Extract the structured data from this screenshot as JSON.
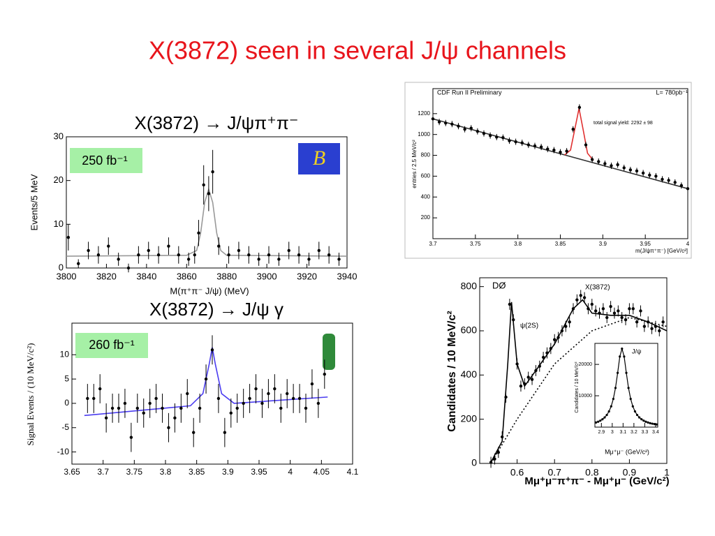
{
  "title": "X(3872) seen in several J/ψ channels",
  "chart_data": [
    {
      "type": "scatter",
      "title": "X(3872) → J/ψπ⁺π⁻",
      "x_label": "M(π⁺π⁻ J/ψ) (MeV)",
      "y_label": "Events/5 MeV",
      "annotations": [
        "250 fb⁻¹"
      ],
      "xlim": [
        3800,
        3940
      ],
      "xticks": [
        3800,
        3820,
        3840,
        3860,
        3880,
        3900,
        3920,
        3940
      ],
      "ylim": [
        0,
        30
      ],
      "yticks": [
        0,
        10,
        20,
        30
      ],
      "color": "#000000",
      "x": [
        3801,
        3806,
        3811,
        3816,
        3821,
        3826,
        3831,
        3836,
        3841,
        3846,
        3851,
        3856,
        3861,
        3864,
        3866,
        3868.5,
        3871,
        3873,
        3876,
        3881,
        3886,
        3891,
        3896,
        3901,
        3906,
        3911,
        3916,
        3921,
        3926,
        3931,
        3936
      ],
      "values": [
        7,
        1,
        4,
        3,
        5,
        2,
        0,
        3,
        4,
        3,
        5,
        3,
        2,
        3,
        8,
        19,
        17,
        22,
        5,
        3,
        4,
        3,
        2,
        3,
        2,
        4,
        3,
        2,
        4,
        3,
        2
      ],
      "errors": [
        3,
        1,
        2,
        2,
        2,
        1.5,
        1,
        2,
        2,
        2,
        2,
        2,
        1.5,
        2,
        3,
        4.5,
        4,
        5,
        2,
        2,
        2,
        2,
        1.5,
        2,
        1.5,
        2,
        2,
        1.5,
        2,
        2,
        1.5
      ],
      "curves": [
        {
          "x": [
            3800,
            3860,
            3865,
            3867,
            3869,
            3871,
            3873,
            3875,
            3877,
            3880,
            3940
          ],
          "values": [
            2.7,
            2.9,
            4,
            8,
            15,
            18,
            15,
            8,
            4,
            2.9,
            2.7
          ],
          "color": "#999999",
          "dashed": false
        }
      ]
    },
    {
      "type": "scatter",
      "title": "X(3872) → J/ψ γ",
      "y_label": "Signal Events / (10 MeV/c²)",
      "annotations": [
        "260 fb⁻¹"
      ],
      "xlim": [
        3.65,
        4.1
      ],
      "xticks": [
        3.65,
        3.7,
        3.75,
        3.8,
        3.85,
        3.9,
        3.95,
        4,
        4.05,
        4.1
      ],
      "ylim": [
        -12.5,
        16.5
      ],
      "yticks": [
        -10,
        -5,
        0,
        5,
        10
      ],
      "color": "#000000",
      "x": [
        3.675,
        3.685,
        3.695,
        3.705,
        3.715,
        3.725,
        3.735,
        3.745,
        3.755,
        3.765,
        3.775,
        3.785,
        3.795,
        3.805,
        3.815,
        3.825,
        3.835,
        3.845,
        3.855,
        3.865,
        3.875,
        3.885,
        3.895,
        3.905,
        3.915,
        3.925,
        3.935,
        3.945,
        3.955,
        3.965,
        3.975,
        3.985,
        3.995,
        4.005,
        4.015,
        4.025,
        4.035,
        4.045,
        4.055
      ],
      "values": [
        1,
        1,
        3,
        -3,
        -1,
        -1,
        0,
        -7,
        -1,
        -2,
        0,
        1,
        -1,
        -5,
        -3,
        -1,
        2,
        -6,
        -1,
        5,
        11,
        1,
        -6,
        -2,
        -1,
        0,
        1,
        3,
        0,
        2,
        3,
        -1,
        2,
        1,
        1,
        -1,
        4,
        0,
        6
      ],
      "errors": 3,
      "curves": [
        {
          "x": [
            3.67,
            3.84,
            3.86,
            3.87,
            3.875,
            3.88,
            3.89,
            3.91,
            4.06
          ],
          "values": [
            -2.5,
            -0.5,
            2,
            8,
            11.5,
            8,
            2,
            0,
            1.3
          ],
          "color": "#4a3cf0",
          "dashed": false
        }
      ]
    },
    {
      "type": "scatter",
      "x_label": "m(J/ψπ⁺π⁻) [GeV/c²]",
      "y_label": "entries / 2.5 MeV/c²",
      "annotations": [
        "CDF Run II Preliminary",
        "L= 780pb⁻¹",
        "total signal yield: 2292 ± 98"
      ],
      "xlim": [
        3.7,
        4.0
      ],
      "xticks": [
        3.7,
        3.75,
        3.8,
        3.85,
        3.9,
        3.95,
        4
      ],
      "ylim": [
        0,
        1440
      ],
      "yticks": [
        200,
        400,
        600,
        800,
        1000,
        1200
      ],
      "color": "#000000",
      "x": [
        3.7,
        3.7075,
        3.715,
        3.7225,
        3.73,
        3.7375,
        3.745,
        3.7525,
        3.76,
        3.7675,
        3.775,
        3.7825,
        3.79,
        3.7975,
        3.805,
        3.8125,
        3.82,
        3.8275,
        3.835,
        3.8425,
        3.85,
        3.8575,
        3.865,
        3.8725,
        3.88,
        3.8875,
        3.895,
        3.9025,
        3.91,
        3.9175,
        3.925,
        3.9325,
        3.94,
        3.9475,
        3.955,
        3.9625,
        3.97,
        3.9775,
        3.985,
        3.9925,
        4.0
      ],
      "values": [
        1150,
        1120,
        1110,
        1100,
        1080,
        1050,
        1060,
        1030,
        1010,
        990,
        975,
        970,
        940,
        930,
        920,
        900,
        890,
        880,
        860,
        850,
        830,
        840,
        1050,
        1260,
        900,
        760,
        740,
        720,
        700,
        710,
        680,
        660,
        650,
        630,
        610,
        600,
        570,
        560,
        540,
        510,
        480
      ],
      "errors": 30,
      "curves": [
        {
          "x": [
            3.7,
            4.0
          ],
          "values": [
            1150,
            480
          ],
          "color": "#333333",
          "dashed": false
        },
        {
          "x": [
            3.855,
            3.862,
            3.867,
            3.872,
            3.877,
            3.882,
            3.889
          ],
          "values": [
            804,
            850,
            1050,
            1250,
            1040,
            820,
            750
          ],
          "color": "#e03030",
          "dashed": false
        }
      ]
    },
    {
      "type": "scatter",
      "x_label": "Mμ⁺μ⁻π⁺π⁻ - Mμ⁺μ⁻ (GeV/c²)",
      "y_label": "Candidates / 10 MeV/c²",
      "annotations": [
        "DØ",
        "ψ(2S)",
        "X(3872)"
      ],
      "xlim": [
        0.5,
        1.0
      ],
      "xticks": [
        0.6,
        0.7,
        0.8,
        0.9,
        1
      ],
      "ylim": [
        0,
        840
      ],
      "yticks": [
        0,
        200,
        400,
        600,
        800
      ],
      "color": "#000000",
      "x": [
        0.53,
        0.54,
        0.55,
        0.56,
        0.57,
        0.58,
        0.59,
        0.6,
        0.61,
        0.62,
        0.63,
        0.64,
        0.65,
        0.66,
        0.67,
        0.68,
        0.69,
        0.7,
        0.71,
        0.72,
        0.73,
        0.74,
        0.75,
        0.76,
        0.77,
        0.78,
        0.79,
        0.8,
        0.81,
        0.82,
        0.83,
        0.84,
        0.85,
        0.86,
        0.87,
        0.88,
        0.89,
        0.9,
        0.91,
        0.92,
        0.93,
        0.94,
        0.95,
        0.96,
        0.97,
        0.98,
        0.99
      ],
      "values": [
        5,
        20,
        50,
        120,
        300,
        720,
        650,
        450,
        350,
        360,
        390,
        380,
        420,
        440,
        480,
        500,
        520,
        560,
        570,
        600,
        620,
        640,
        700,
        740,
        760,
        750,
        700,
        720,
        690,
        680,
        700,
        660,
        710,
        680,
        690,
        660,
        650,
        700,
        700,
        640,
        690,
        620,
        640,
        610,
        620,
        600,
        640
      ],
      "errors": 25,
      "curves": [
        {
          "x": [
            0.53,
            0.56,
            0.575,
            0.585,
            0.6,
            0.62,
            0.65,
            0.7,
            0.75,
            0.775,
            0.8,
            0.85,
            0.9,
            0.95,
            1.0
          ],
          "values": [
            5,
            100,
            450,
            730,
            450,
            350,
            420,
            540,
            700,
            740,
            680,
            670,
            670,
            640,
            600
          ],
          "color": "#000000",
          "dashed": false
        },
        {
          "x": [
            0.53,
            0.6,
            0.7,
            0.8,
            0.9,
            1.0
          ],
          "values": [
            0,
            200,
            450,
            600,
            660,
            620
          ],
          "color": "#000000",
          "dashed": true
        }
      ]
    },
    {
      "type": "line",
      "x_label": "Mμ⁺μ⁻ (GeV/c²)",
      "y_label": "Candidates / 10 MeV/c²",
      "annotations": [
        "J/ψ"
      ],
      "xlim": [
        2.84,
        3.42
      ],
      "xticks": [
        2.9,
        3,
        3.1,
        3.2,
        3.3,
        3.4
      ],
      "ylim": [
        0,
        26700
      ],
      "yticks": [
        10000,
        20000
      ],
      "color": "#000000",
      "x": [
        2.85,
        2.87,
        2.89,
        2.91,
        2.93,
        2.95,
        2.97,
        2.99,
        3.01,
        3.03,
        3.05,
        3.07,
        3.09,
        3.11,
        3.13,
        3.15,
        3.17,
        3.19,
        3.21,
        3.23,
        3.25,
        3.27,
        3.29,
        3.31,
        3.33,
        3.35,
        3.37,
        3.39,
        3.41
      ],
      "values": [
        1470,
        1730,
        2070,
        2500,
        3090,
        3880,
        5000,
        6620,
        9000,
        12500,
        17300,
        22500,
        25000,
        22500,
        17300,
        12500,
        9000,
        6620,
        5000,
        3880,
        3090,
        2500,
        2070,
        1730,
        1470,
        1260,
        1100,
        970,
        850
      ]
    }
  ]
}
